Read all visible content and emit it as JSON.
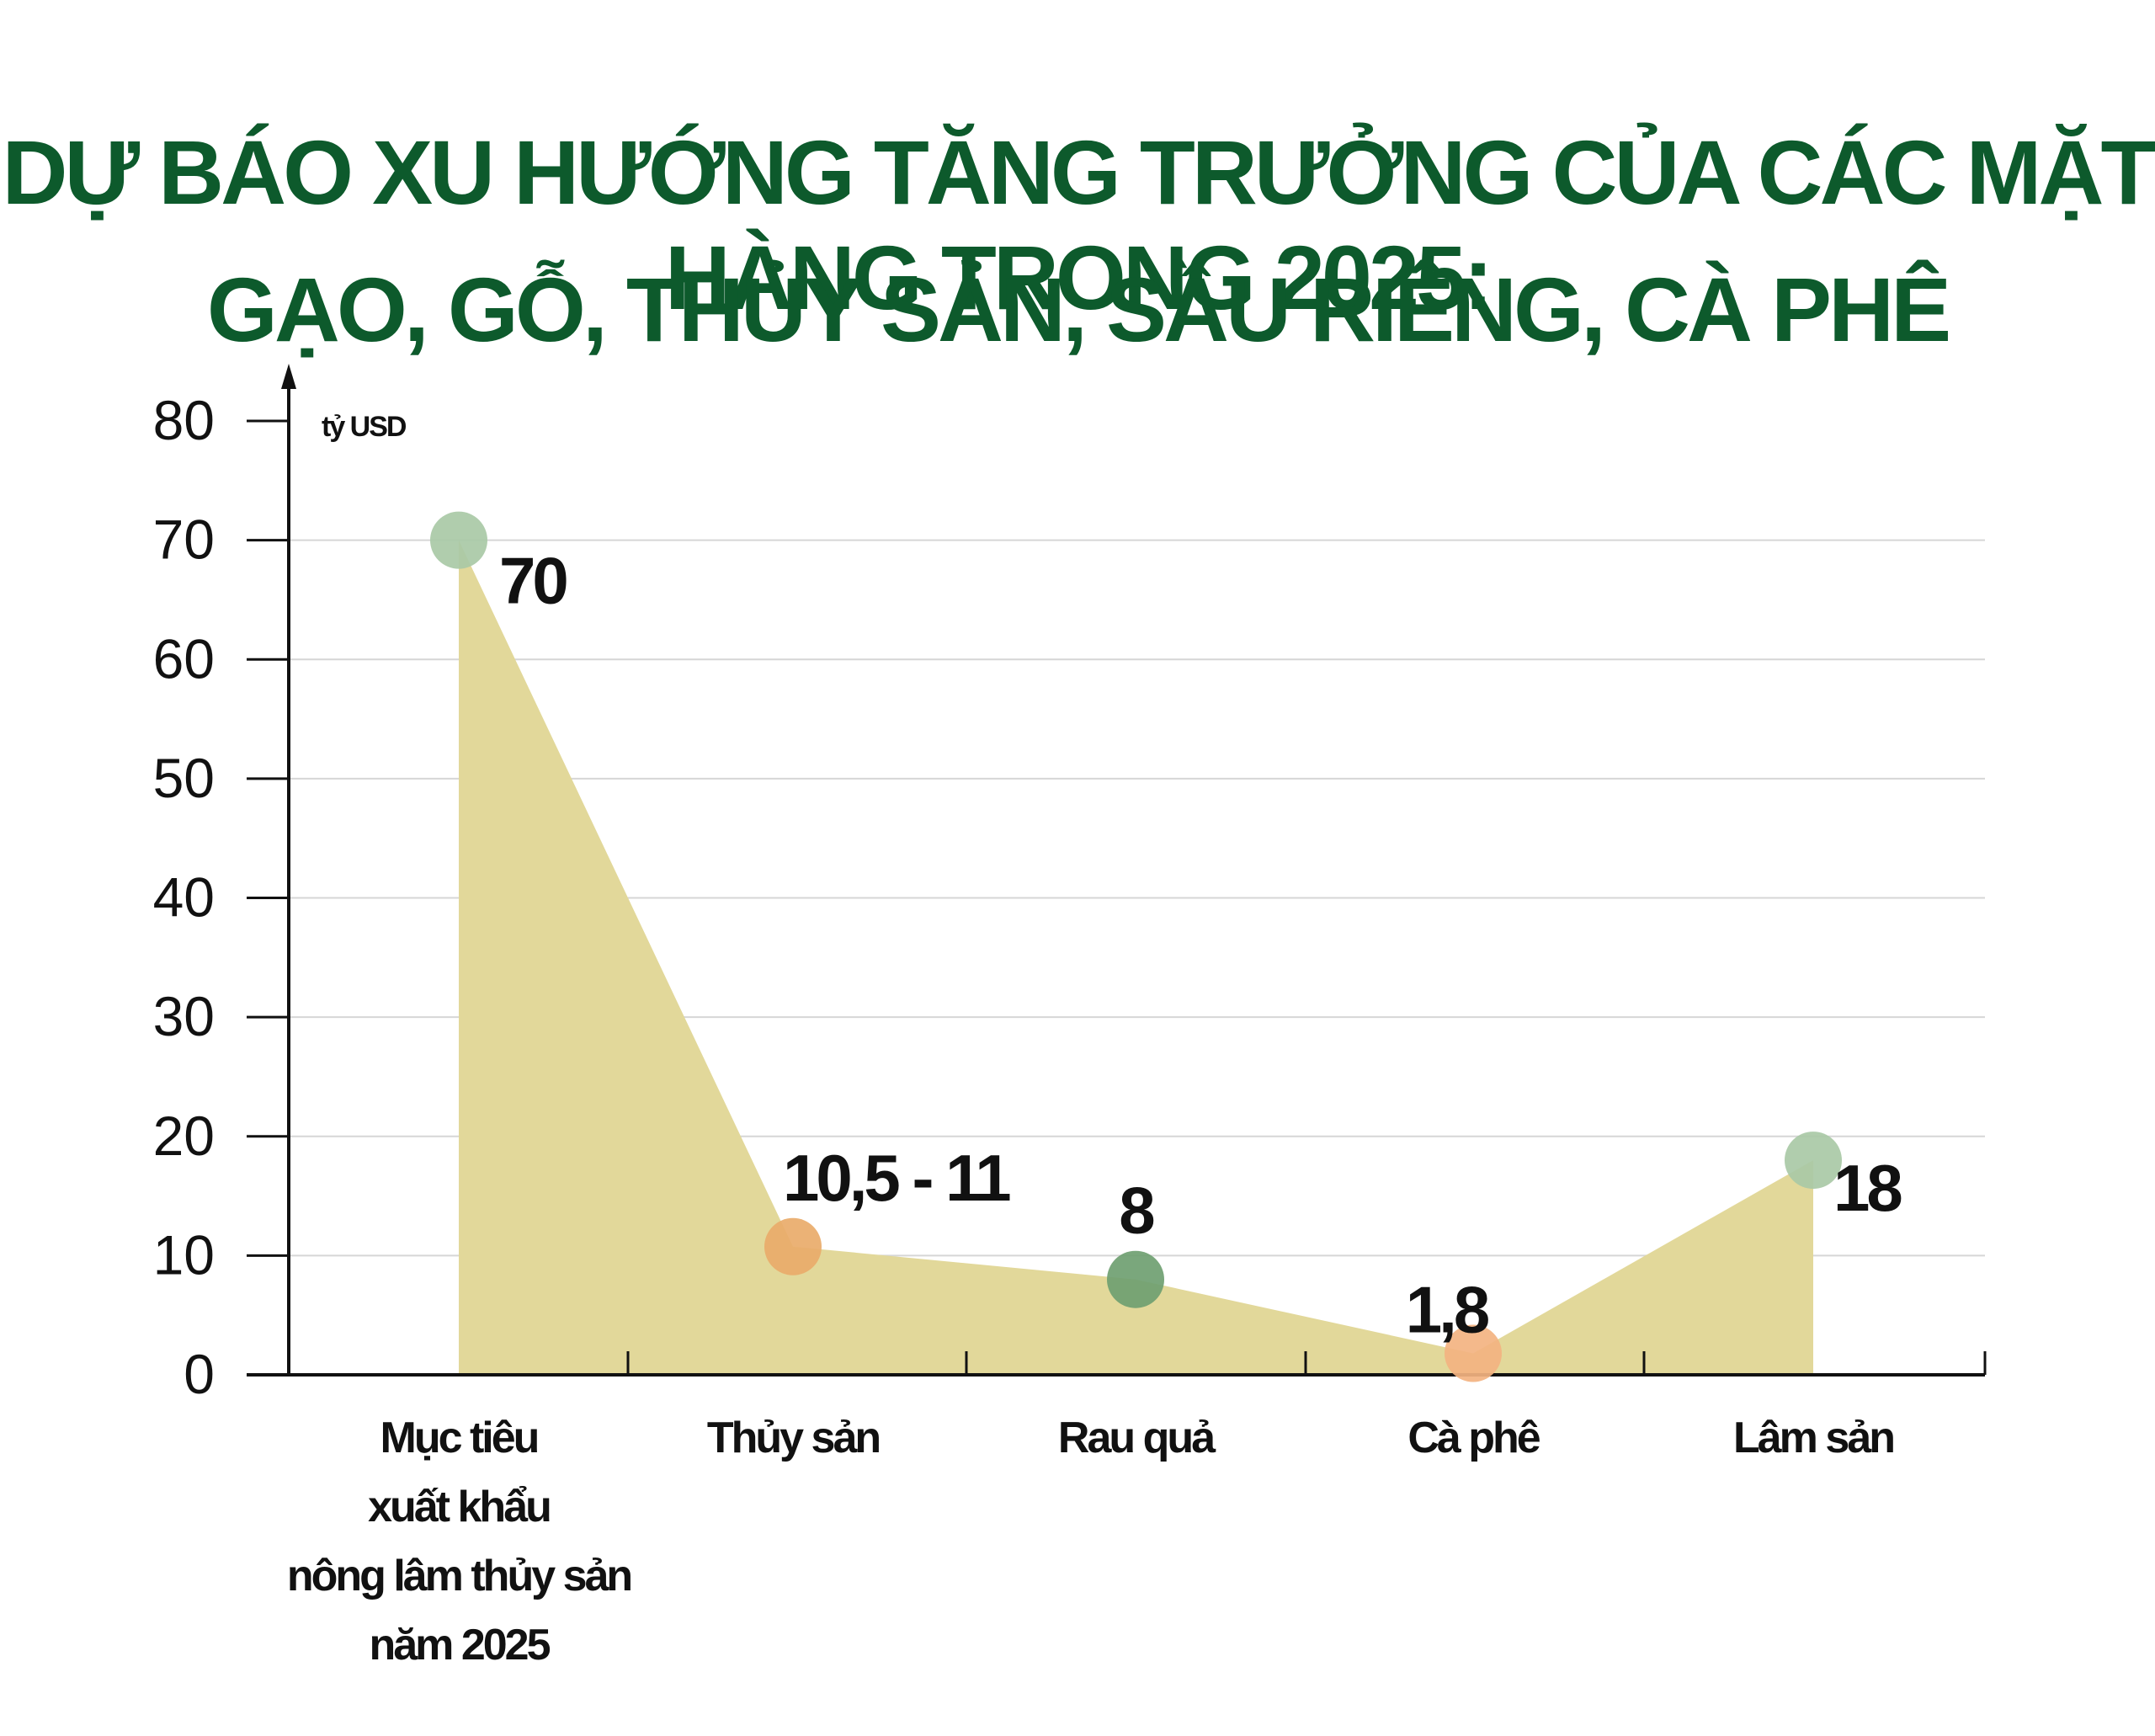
{
  "title_line1": "DỰ BÁO XU HƯỚNG TĂNG TRƯỞNG CỦA CÁC MẶT HÀNG TRONG 2025:",
  "title_line2": "GẠO, GỖ, THỦY SẢN, SẦU RIÊNG, CÀ PHÊ",
  "chart_data": {
    "type": "area",
    "ylabel": "tỷ USD",
    "ylim": [
      0,
      80
    ],
    "yticks": [
      0,
      10,
      20,
      30,
      40,
      50,
      60,
      70,
      80
    ],
    "grid": true,
    "categories": [
      [
        "Mục tiêu",
        "xuất khẩu",
        "nông lâm thủy sản",
        "năm 2025"
      ],
      [
        "Thủy sản"
      ],
      [
        "Rau quả"
      ],
      [
        "Cà phê"
      ],
      [
        "Lâm sản"
      ]
    ],
    "values": [
      70,
      10.75,
      8,
      1.8,
      18
    ],
    "data_labels": [
      "70",
      "10,5 - 11",
      "8",
      "1,8",
      "18"
    ],
    "marker_colors": [
      "#a9c9a6",
      "#e9ab6a",
      "#6f9f71",
      "#f3b381",
      "#a9c9a6"
    ],
    "area_color": "#e2d89a",
    "axis_color": "#111111",
    "grid_color": "#d6d6d6"
  }
}
